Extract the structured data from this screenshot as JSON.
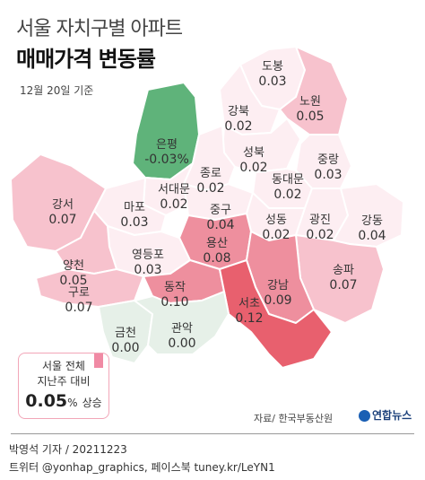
{
  "header": {
    "title_line1": "서울 자치구별 아파트",
    "title_line2": "매매가격 변동률",
    "date": "12월 20일 기준"
  },
  "colors": {
    "negative": "#5fb37a",
    "low": "#fdeef2",
    "mid": "#f7c2cd",
    "high": "#ee8f9e",
    "top": "#e8606e",
    "zero": "#e6f0e8"
  },
  "districts": [
    {
      "name": "도봉",
      "value": "0.03"
    },
    {
      "name": "노원",
      "value": "0.05"
    },
    {
      "name": "강북",
      "value": "0.02"
    },
    {
      "name": "은평",
      "value": "-0.03%"
    },
    {
      "name": "성북",
      "value": "0.02"
    },
    {
      "name": "중랑",
      "value": "0.03"
    },
    {
      "name": "종로",
      "value": "0.02"
    },
    {
      "name": "동대문",
      "value": "0.02"
    },
    {
      "name": "서대문",
      "value": "0.02"
    },
    {
      "name": "마포",
      "value": "0.03"
    },
    {
      "name": "중구",
      "value": "0.04"
    },
    {
      "name": "성동",
      "value": "0.02"
    },
    {
      "name": "광진",
      "value": "0.02"
    },
    {
      "name": "강동",
      "value": "0.04"
    },
    {
      "name": "강서",
      "value": "0.07"
    },
    {
      "name": "용산",
      "value": "0.08"
    },
    {
      "name": "영등포",
      "value": "0.03"
    },
    {
      "name": "양천",
      "value": "0.05"
    },
    {
      "name": "송파",
      "value": "0.07"
    },
    {
      "name": "강남",
      "value": "0.09"
    },
    {
      "name": "구로",
      "value": "0.07"
    },
    {
      "name": "동작",
      "value": "0.10"
    },
    {
      "name": "서초",
      "value": "0.12"
    },
    {
      "name": "금천",
      "value": "0.00"
    },
    {
      "name": "관악",
      "value": "0.00"
    }
  ],
  "summary": {
    "line1": "서울 전체",
    "line2": "지난주 대비",
    "value": "0.05",
    "unit": "%",
    "suffix": "상승"
  },
  "footer": {
    "source": "자료/ 한국부동산원",
    "logo": "연합뉴스",
    "credit": "박영석 기자 /  20211223",
    "social": "트위터 @yonhap_graphics, 페이스북 tuney.kr/LeYN1"
  }
}
